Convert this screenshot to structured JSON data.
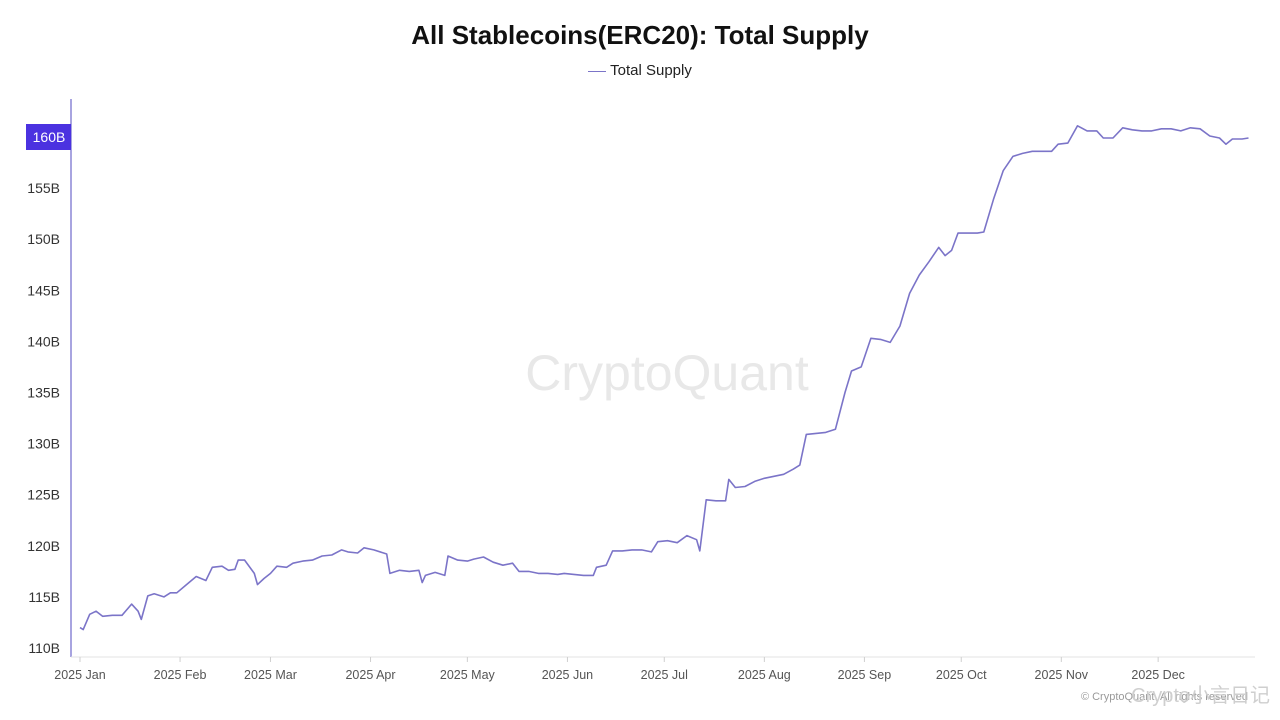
{
  "chart_data": {
    "type": "line",
    "title": "All Stablecoins(ERC20): Total Supply",
    "legend": [
      "Total Supply"
    ],
    "series": [
      {
        "name": "Total Supply",
        "color": "#7b74c8",
        "points": [
          [
            "2025-01-01",
            112.0
          ],
          [
            "2025-01-02",
            111.8
          ],
          [
            "2025-01-04",
            113.3
          ],
          [
            "2025-01-06",
            113.6
          ],
          [
            "2025-01-08",
            113.1
          ],
          [
            "2025-01-11",
            113.2
          ],
          [
            "2025-01-14",
            113.2
          ],
          [
            "2025-01-17",
            114.3
          ],
          [
            "2025-01-19",
            113.6
          ],
          [
            "2025-01-20",
            112.8
          ],
          [
            "2025-01-22",
            115.1
          ],
          [
            "2025-01-24",
            115.3
          ],
          [
            "2025-01-27",
            115.0
          ],
          [
            "2025-01-29",
            115.4
          ],
          [
            "2025-01-31",
            115.4
          ],
          [
            "2025-02-03",
            116.2
          ],
          [
            "2025-02-06",
            117.0
          ],
          [
            "2025-02-09",
            116.6
          ],
          [
            "2025-02-11",
            117.9
          ],
          [
            "2025-02-14",
            118.0
          ],
          [
            "2025-02-16",
            117.6
          ],
          [
            "2025-02-18",
            117.7
          ],
          [
            "2025-02-19",
            118.6
          ],
          [
            "2025-02-21",
            118.6
          ],
          [
            "2025-02-24",
            117.3
          ],
          [
            "2025-02-25",
            116.2
          ],
          [
            "2025-02-27",
            116.8
          ],
          [
            "2025-03-01",
            117.3
          ],
          [
            "2025-03-03",
            118.0
          ],
          [
            "2025-03-06",
            117.9
          ],
          [
            "2025-03-08",
            118.3
          ],
          [
            "2025-03-11",
            118.5
          ],
          [
            "2025-03-14",
            118.6
          ],
          [
            "2025-03-17",
            119.0
          ],
          [
            "2025-03-20",
            119.1
          ],
          [
            "2025-03-23",
            119.6
          ],
          [
            "2025-03-25",
            119.4
          ],
          [
            "2025-03-28",
            119.3
          ],
          [
            "2025-03-30",
            119.8
          ],
          [
            "2025-04-02",
            119.6
          ],
          [
            "2025-04-06",
            119.2
          ],
          [
            "2025-04-07",
            117.3
          ],
          [
            "2025-04-10",
            117.6
          ],
          [
            "2025-04-13",
            117.5
          ],
          [
            "2025-04-16",
            117.6
          ],
          [
            "2025-04-17",
            116.4
          ],
          [
            "2025-04-18",
            117.1
          ],
          [
            "2025-04-21",
            117.4
          ],
          [
            "2025-04-24",
            117.1
          ],
          [
            "2025-04-25",
            119.0
          ],
          [
            "2025-04-28",
            118.6
          ],
          [
            "2025-05-01",
            118.5
          ],
          [
            "2025-05-03",
            118.7
          ],
          [
            "2025-05-06",
            118.9
          ],
          [
            "2025-05-09",
            118.4
          ],
          [
            "2025-05-12",
            118.1
          ],
          [
            "2025-05-15",
            118.3
          ],
          [
            "2025-05-17",
            117.5
          ],
          [
            "2025-05-20",
            117.5
          ],
          [
            "2025-05-23",
            117.3
          ],
          [
            "2025-05-26",
            117.3
          ],
          [
            "2025-05-29",
            117.2
          ],
          [
            "2025-05-31",
            117.3
          ],
          [
            "2025-06-03",
            117.2
          ],
          [
            "2025-06-06",
            117.1
          ],
          [
            "2025-06-09",
            117.1
          ],
          [
            "2025-06-10",
            117.9
          ],
          [
            "2025-06-13",
            118.1
          ],
          [
            "2025-06-15",
            119.5
          ],
          [
            "2025-06-18",
            119.5
          ],
          [
            "2025-06-21",
            119.6
          ],
          [
            "2025-06-24",
            119.6
          ],
          [
            "2025-06-27",
            119.4
          ],
          [
            "2025-06-29",
            120.4
          ],
          [
            "2025-07-02",
            120.5
          ],
          [
            "2025-07-05",
            120.3
          ],
          [
            "2025-07-08",
            121.0
          ],
          [
            "2025-07-11",
            120.6
          ],
          [
            "2025-07-12",
            119.5
          ],
          [
            "2025-07-13",
            122.0
          ],
          [
            "2025-07-14",
            124.5
          ],
          [
            "2025-07-17",
            124.4
          ],
          [
            "2025-07-20",
            124.4
          ],
          [
            "2025-07-21",
            126.5
          ],
          [
            "2025-07-23",
            125.7
          ],
          [
            "2025-07-26",
            125.8
          ],
          [
            "2025-07-29",
            126.3
          ],
          [
            "2025-08-01",
            126.6
          ],
          [
            "2025-08-04",
            126.8
          ],
          [
            "2025-08-07",
            127.0
          ],
          [
            "2025-08-10",
            127.5
          ],
          [
            "2025-08-12",
            127.9
          ],
          [
            "2025-08-14",
            130.9
          ],
          [
            "2025-08-17",
            131.0
          ],
          [
            "2025-08-20",
            131.1
          ],
          [
            "2025-08-23",
            131.4
          ],
          [
            "2025-08-26",
            135.0
          ],
          [
            "2025-08-28",
            137.1
          ],
          [
            "2025-08-31",
            137.5
          ],
          [
            "2025-09-03",
            140.3
          ],
          [
            "2025-09-06",
            140.2
          ],
          [
            "2025-09-09",
            139.9
          ],
          [
            "2025-09-12",
            141.5
          ],
          [
            "2025-09-15",
            144.7
          ],
          [
            "2025-09-18",
            146.5
          ],
          [
            "2025-09-21",
            147.8
          ],
          [
            "2025-09-24",
            149.2
          ],
          [
            "2025-09-26",
            148.4
          ],
          [
            "2025-09-28",
            148.9
          ],
          [
            "2025-09-30",
            150.6
          ],
          [
            "2025-10-03",
            150.6
          ],
          [
            "2025-10-06",
            150.6
          ],
          [
            "2025-10-08",
            150.7
          ],
          [
            "2025-10-11",
            153.9
          ],
          [
            "2025-10-14",
            156.7
          ],
          [
            "2025-10-17",
            158.1
          ],
          [
            "2025-10-20",
            158.4
          ],
          [
            "2025-10-23",
            158.6
          ],
          [
            "2025-10-26",
            158.6
          ],
          [
            "2025-10-29",
            158.6
          ],
          [
            "2025-10-31",
            159.3
          ],
          [
            "2025-11-03",
            159.4
          ],
          [
            "2025-11-06",
            161.1
          ],
          [
            "2025-11-09",
            160.6
          ],
          [
            "2025-11-12",
            160.6
          ],
          [
            "2025-11-14",
            159.9
          ],
          [
            "2025-11-17",
            159.9
          ],
          [
            "2025-11-20",
            160.9
          ],
          [
            "2025-11-23",
            160.7
          ],
          [
            "2025-11-26",
            160.6
          ],
          [
            "2025-11-29",
            160.6
          ],
          [
            "2025-12-02",
            160.8
          ],
          [
            "2025-12-05",
            160.8
          ],
          [
            "2025-12-08",
            160.6
          ],
          [
            "2025-12-11",
            160.9
          ],
          [
            "2025-12-14",
            160.8
          ],
          [
            "2025-12-17",
            160.1
          ],
          [
            "2025-12-20",
            159.9
          ],
          [
            "2025-12-22",
            159.3
          ],
          [
            "2025-12-24",
            159.8
          ],
          [
            "2025-12-27",
            159.8
          ],
          [
            "2025-12-29",
            159.9
          ]
        ]
      }
    ],
    "xaxis": {
      "type": "date",
      "range": [
        "2025-01-01",
        "2025-12-31"
      ],
      "ticks": [
        {
          "date": "2025-01-01",
          "label": "2025 Jan"
        },
        {
          "date": "2025-02-01",
          "label": "2025 Feb"
        },
        {
          "date": "2025-03-01",
          "label": "2025 Mar"
        },
        {
          "date": "2025-04-01",
          "label": "2025 Apr"
        },
        {
          "date": "2025-05-01",
          "label": "2025 May"
        },
        {
          "date": "2025-06-01",
          "label": "2025 Jun"
        },
        {
          "date": "2025-07-01",
          "label": "2025 Jul"
        },
        {
          "date": "2025-08-01",
          "label": "2025 Aug"
        },
        {
          "date": "2025-09-01",
          "label": "2025 Sep"
        },
        {
          "date": "2025-10-01",
          "label": "2025 Oct"
        },
        {
          "date": "2025-11-01",
          "label": "2025 Nov"
        },
        {
          "date": "2025-12-01",
          "label": "2025 Dec"
        }
      ]
    },
    "yaxis": {
      "unit": "B",
      "range": [
        110,
        160
      ],
      "ticks": [
        {
          "value": 110,
          "label": "110B"
        },
        {
          "value": 115,
          "label": "115B"
        },
        {
          "value": 120,
          "label": "120B"
        },
        {
          "value": 125,
          "label": "125B"
        },
        {
          "value": 130,
          "label": "130B"
        },
        {
          "value": 135,
          "label": "135B"
        },
        {
          "value": 140,
          "label": "140B"
        },
        {
          "value": 145,
          "label": "145B"
        },
        {
          "value": 150,
          "label": "150B"
        },
        {
          "value": 155,
          "label": "155B"
        },
        {
          "value": 160,
          "label": "160B"
        }
      ],
      "highlight": {
        "value": 160,
        "label": "160B",
        "color": "#4b32e0"
      }
    },
    "grid": false,
    "legend_position": "top-center"
  },
  "watermark": "CryptoQuant",
  "footer": {
    "copyright": "© CryptoQuant. All rights reserved",
    "brand": "Crypto小言日记"
  }
}
